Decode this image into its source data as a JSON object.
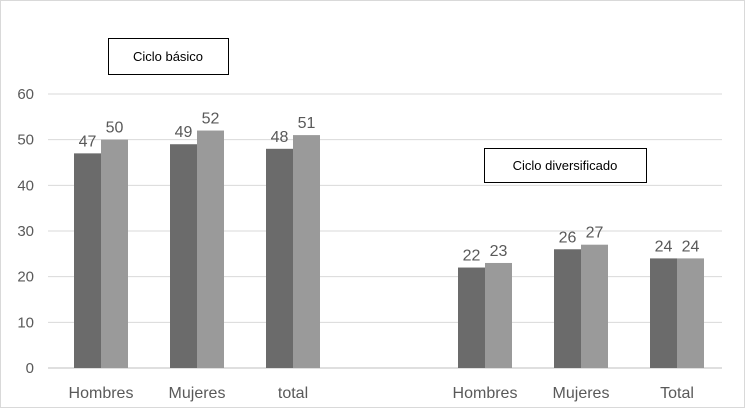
{
  "chart_data": {
    "type": "bar",
    "ylim": [
      0,
      60
    ],
    "yticks": [
      0,
      10,
      20,
      30,
      40,
      50,
      60
    ],
    "grid": true,
    "legend": "none",
    "colors": {
      "series_a": "#6b6b6b",
      "series_b": "#9a9a9a",
      "grid": "#d9d9d9",
      "axis": "#bfbfbf",
      "text": "#595959"
    },
    "groups": [
      {
        "title": "Ciclo básico",
        "categories": [
          "Hombres",
          "Mujeres",
          "total"
        ],
        "series": [
          {
            "values": [
              47,
              49,
              48
            ]
          },
          {
            "values": [
              50,
              52,
              51
            ]
          }
        ]
      },
      {
        "title": "Ciclo diversificado",
        "categories": [
          "Hombres",
          "Mujeres",
          "Total"
        ],
        "series": [
          {
            "values": [
              22,
              26,
              24
            ]
          },
          {
            "values": [
              23,
              27,
              24
            ]
          }
        ]
      }
    ]
  }
}
